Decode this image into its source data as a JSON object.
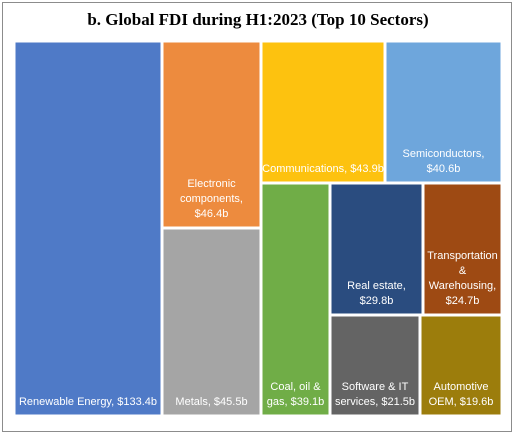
{
  "title": "b. Global FDI during H1:2023 (Top 10 Sectors)",
  "chart_data": {
    "type": "treemap",
    "unit": "$b",
    "items": [
      {
        "key": "renewable",
        "name": "Renewable Energy",
        "value": 133.4,
        "label_lines": [
          "Renewable Energy, $133.4b"
        ],
        "color": "#4f7ac7"
      },
      {
        "key": "electronic",
        "name": "Electronic components",
        "value": 46.4,
        "label_lines": [
          "Electronic",
          "components,",
          "$46.4b"
        ],
        "color": "#ed8b3e"
      },
      {
        "key": "metals",
        "name": "Metals",
        "value": 45.5,
        "label_lines": [
          "Metals, $45.5b"
        ],
        "color": "#a5a5a5"
      },
      {
        "key": "communications",
        "name": "Communications",
        "value": 43.9,
        "label_lines": [
          "Communications, $43.9b"
        ],
        "color": "#fdc20f"
      },
      {
        "key": "semiconductors",
        "name": "Semiconductors",
        "value": 40.6,
        "label_lines": [
          "Semiconductors,",
          "$40.6b"
        ],
        "color": "#6ea6dc"
      },
      {
        "key": "coal",
        "name": "Coal, oil & gas",
        "value": 39.1,
        "label_lines": [
          "Coal, oil &",
          "gas, $39.1b"
        ],
        "color": "#70ad47"
      },
      {
        "key": "realestate",
        "name": "Real estate",
        "value": 29.8,
        "label_lines": [
          "Real estate,",
          "$29.8b"
        ],
        "color": "#2a4c7f"
      },
      {
        "key": "transport",
        "name": "Transportation & Warehousing",
        "value": 24.7,
        "label_lines": [
          "Transportation",
          "&",
          "Warehousing,",
          "$24.7b"
        ],
        "color": "#9e4a13"
      },
      {
        "key": "software",
        "name": "Software & IT services",
        "value": 21.5,
        "label_lines": [
          "Software & IT",
          "services, $21.5b"
        ],
        "color": "#646464"
      },
      {
        "key": "automotive",
        "name": "Automotive OEM",
        "value": 19.6,
        "label_lines": [
          "Automotive",
          "OEM, $19.6b"
        ],
        "color": "#9c7d0c"
      }
    ]
  }
}
